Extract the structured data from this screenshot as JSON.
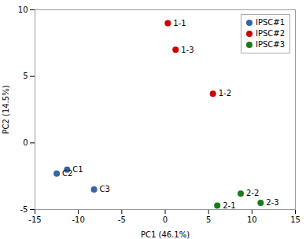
{
  "chart_data": {
    "type": "scatter",
    "xlabel": "PC1 (46.1%)",
    "ylabel": "PC2 (14.5%)",
    "xlim": [
      -15,
      15
    ],
    "ylim": [
      -5,
      10
    ],
    "xticks": [
      -15,
      -10,
      -5,
      0,
      5,
      10,
      15
    ],
    "yticks": [
      -5,
      0,
      5,
      10
    ],
    "grid": false,
    "legend": "upper right",
    "series": [
      {
        "name": "IPSC#1",
        "color": "#3465a4",
        "x": [
          -12.5,
          -11.3,
          -8.2
        ],
        "y": [
          -2.3,
          -2.0,
          -3.5
        ],
        "labels": [
          "C2",
          "C1",
          "C3"
        ]
      },
      {
        "name": "IPSC#2",
        "color": "#cc0000",
        "x": [
          0.3,
          1.2,
          5.5
        ],
        "y": [
          9.0,
          7.0,
          3.7
        ],
        "labels": [
          "1-1",
          "1-3",
          "1-2"
        ]
      },
      {
        "name": "IPSC#3",
        "color": "#1a7a1a",
        "x": [
          6.0,
          8.7,
          11.0
        ],
        "y": [
          -4.7,
          -3.8,
          -4.5
        ],
        "labels": [
          "2-1",
          "2-2",
          "2-3"
        ]
      }
    ]
  }
}
